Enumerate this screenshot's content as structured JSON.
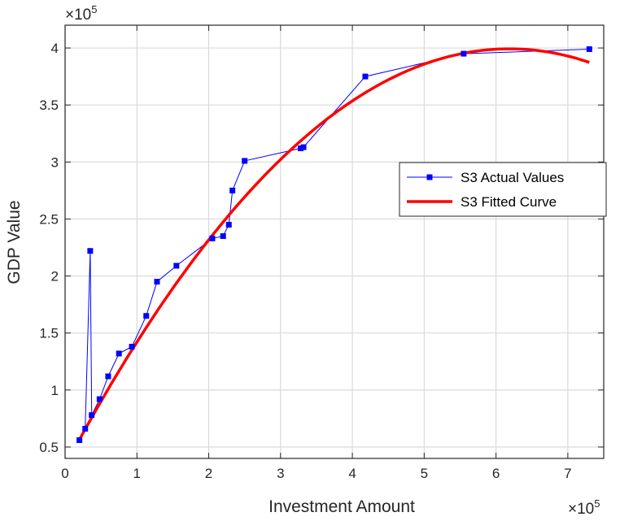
{
  "chart_data": {
    "type": "line",
    "xlabel": "Investment Amount",
    "ylabel": "GDP Value",
    "x_exponent_label": "×10",
    "x_exponent_power": "5",
    "y_exponent_label": "×10",
    "y_exponent_power": "5",
    "xlim": [
      0,
      7.5
    ],
    "ylim": [
      0.4,
      4.2
    ],
    "x_ticks": [
      0,
      1,
      2,
      3,
      4,
      5,
      6,
      7
    ],
    "x_tick_labels": [
      "0",
      "1",
      "2",
      "3",
      "4",
      "5",
      "6",
      "7"
    ],
    "y_ticks": [
      0.5,
      1,
      1.5,
      2,
      2.5,
      3,
      3.5,
      4
    ],
    "y_tick_labels": [
      "0.5",
      "1",
      "1.5",
      "2",
      "2.5",
      "3",
      "3.5",
      "4"
    ],
    "grid": true,
    "legend_position": "right",
    "series": [
      {
        "name": "S3 Actual Values",
        "style": "line-square-markers",
        "color": "#0000ff",
        "x": [
          0.2,
          0.28,
          0.35,
          0.37,
          0.48,
          0.6,
          0.75,
          0.93,
          1.13,
          1.28,
          1.55,
          2.05,
          2.2,
          2.28,
          2.33,
          2.5,
          3.28,
          3.32,
          4.18,
          5.55,
          7.3
        ],
        "y": [
          0.56,
          0.66,
          2.22,
          0.78,
          0.92,
          1.12,
          1.32,
          1.38,
          1.65,
          1.95,
          2.09,
          2.33,
          2.35,
          2.45,
          2.75,
          3.01,
          3.12,
          3.13,
          3.75,
          3.95,
          3.99
        ]
      },
      {
        "name": "S3 Fitted Curve",
        "style": "line",
        "color": "#ff0000",
        "x_range": [
          0.2,
          7.3
        ],
        "coefficients": [
          0.3325,
          1.1835,
          -0.09567
        ]
      }
    ]
  }
}
